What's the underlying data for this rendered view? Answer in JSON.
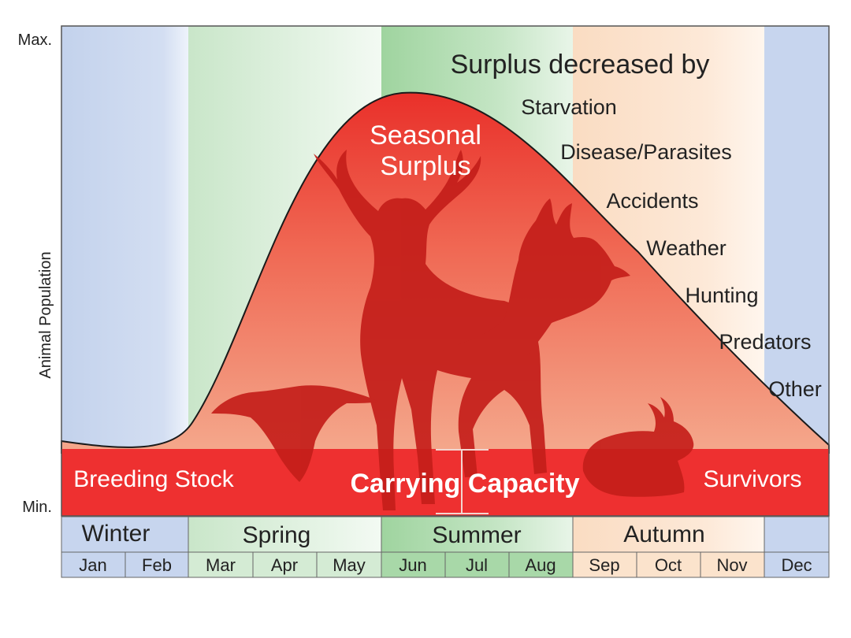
{
  "axis": {
    "y_label": "Animal Population",
    "max_label": "Max.",
    "min_label": "Min."
  },
  "curve": {
    "surplus_label_line1": "Seasonal",
    "surplus_label_line2": "Surplus",
    "decreased_by_title": "Surplus decreased by",
    "factors": [
      "Starvation",
      "Disease/Parasites",
      "Accidents",
      "Weather",
      "Hunting",
      "Predators",
      "Other"
    ]
  },
  "band": {
    "breeding_stock": "Breeding Stock",
    "carrying_capacity": "Carrying Capacity",
    "survivors": "Survivors"
  },
  "seasons": [
    {
      "name": "Winter",
      "color": "#c7d5ee"
    },
    {
      "name": "Spring",
      "color": "#d4ebd4"
    },
    {
      "name": "Summer",
      "color": "#a8d8a8"
    },
    {
      "name": "Autumn",
      "color": "#fbe3cc"
    }
  ],
  "months": [
    "Jan",
    "Feb",
    "Mar",
    "Apr",
    "May",
    "Jun",
    "Jul",
    "Aug",
    "Sep",
    "Oct",
    "Nov",
    "Dec"
  ],
  "colors": {
    "winter": "#c7d5ee",
    "spring": "#d4ebd4",
    "summer": "#a8d8a8",
    "autumn": "#fbe3cc",
    "surplus_top": "#e8332a",
    "surplus_bottom": "#f4a585",
    "band": "#ee3030",
    "silhouette": "#c41e1a"
  },
  "silhouettes": [
    "deer",
    "pheasant",
    "duck",
    "rabbit"
  ]
}
